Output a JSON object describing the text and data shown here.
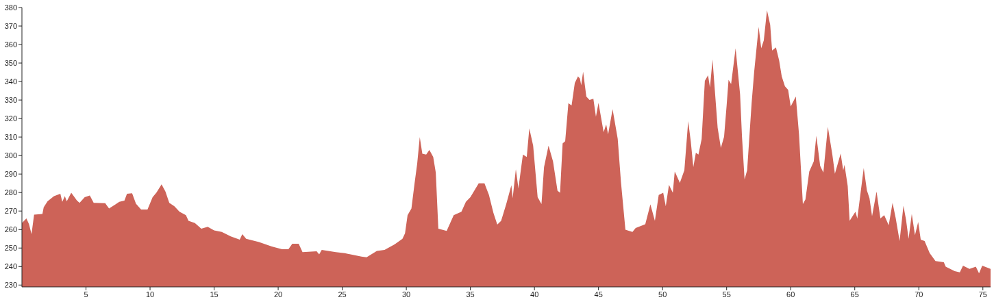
{
  "chart_data": {
    "type": "area",
    "xlim": [
      0,
      75.6
    ],
    "ylim": [
      229,
      380
    ],
    "xticks": [
      5,
      10,
      15,
      20,
      25,
      30,
      35,
      40,
      45,
      50,
      55,
      60,
      65,
      70,
      75
    ],
    "yticks": [
      230,
      240,
      250,
      260,
      270,
      280,
      290,
      300,
      310,
      320,
      330,
      340,
      350,
      360,
      370,
      380
    ],
    "grid": false,
    "series": [
      {
        "color": "#cd6358",
        "x": [
          0,
          0.35,
          0.55,
          0.75,
          0.95,
          1.6,
          1.7,
          2,
          2.5,
          3,
          3.15,
          3.35,
          3.5,
          3.85,
          4.3,
          4.5,
          4.9,
          5.3,
          5.6,
          6.5,
          6.8,
          7.3,
          7.6,
          8,
          8.2,
          8.6,
          8.9,
          9.3,
          9.8,
          10.2,
          10.5,
          10.9,
          11.2,
          11.5,
          11.9,
          12.3,
          12.8,
          13,
          13.5,
          14,
          14.5,
          15,
          15.6,
          16.3,
          17,
          17.2,
          17.5,
          18.5,
          19.5,
          20.3,
          20.8,
          21.1,
          21.6,
          21.9,
          23,
          23.2,
          23.4,
          24.5,
          25.2,
          26.5,
          26.9,
          27.7,
          28.3,
          29.1,
          29.7,
          29.9,
          30.1,
          30.4,
          30.65,
          30.85,
          31.05,
          31.25,
          31.55,
          31.8,
          32.1,
          32.3,
          32.5,
          33.15,
          33.7,
          34.3,
          34.65,
          35,
          35.65,
          36.1,
          36.45,
          36.8,
          37.1,
          37.4,
          37.8,
          38.2,
          38.3,
          38.55,
          38.75,
          39.1,
          39.4,
          39.6,
          39.9,
          40.25,
          40.55,
          40.75,
          41.1,
          41.45,
          41.8,
          42,
          42.2,
          42.4,
          42.65,
          42.9,
          43.15,
          43.4,
          43.55,
          43.65,
          43.8,
          44.05,
          44.3,
          44.6,
          44.8,
          45,
          45.4,
          45.6,
          45.75,
          46.1,
          46.5,
          46.75,
          47.1,
          47.65,
          47.9,
          48.65,
          49.05,
          49.4,
          49.7,
          50.05,
          50.25,
          50.5,
          50.8,
          50.95,
          51.35,
          51.7,
          52,
          52.2,
          52.4,
          52.6,
          52.8,
          53.05,
          53.3,
          53.55,
          53.7,
          53.9,
          54.3,
          54.55,
          54.8,
          55,
          55.15,
          55.35,
          55.7,
          56.05,
          56.2,
          56.4,
          56.6,
          56.95,
          57.15,
          57.5,
          57.7,
          57.9,
          58.15,
          58.4,
          58.55,
          58.85,
          59.1,
          59.3,
          59.55,
          59.8,
          60,
          60.4,
          60.65,
          60.95,
          61.15,
          61.45,
          61.8,
          62,
          62.3,
          62.55,
          62.9,
          63.25,
          63.45,
          63.9,
          64.1,
          64.2,
          64.45,
          64.6,
          65.05,
          65.2,
          65.7,
          65.95,
          66.15,
          66.35,
          66.7,
          67,
          67.3,
          67.65,
          67.95,
          68.2,
          68.5,
          68.8,
          69,
          69.2,
          69.45,
          69.7,
          69.95,
          70.15,
          70.45,
          70.85,
          71.3,
          71.95,
          72.1,
          72.8,
          73.2,
          73.45,
          73.95,
          74.45,
          74.7,
          74.95,
          75.6
        ],
        "values": [
          263.5,
          266,
          263,
          257.5,
          268,
          268.4,
          272,
          275.3,
          278,
          279.3,
          275,
          278,
          275.3,
          279.9,
          275.6,
          274.4,
          277.5,
          278.4,
          274.4,
          274.2,
          271.4,
          273.6,
          275,
          275.6,
          279.3,
          279.6,
          274,
          270.8,
          270.8,
          277.5,
          280,
          284.4,
          280.5,
          274.4,
          272.6,
          269.6,
          267.8,
          264.7,
          263.5,
          260.5,
          261.5,
          259.5,
          258.7,
          256.3,
          254.5,
          257.5,
          255,
          253.2,
          250.8,
          249.4,
          249.4,
          252.3,
          252.3,
          247.8,
          248.2,
          246.6,
          249,
          247.8,
          247.2,
          245.4,
          245,
          248.4,
          249,
          252,
          255,
          258,
          267.8,
          271.4,
          285.3,
          295.6,
          310,
          301,
          300.5,
          303,
          299.2,
          290.8,
          260.5,
          259.3,
          267.8,
          269.6,
          275,
          277.5,
          285,
          285,
          278.7,
          269,
          262.7,
          264.7,
          273.8,
          284,
          276.9,
          292.6,
          282.3,
          300.5,
          299.2,
          314.7,
          305.3,
          277.5,
          273.8,
          293.8,
          305.3,
          296.8,
          281,
          279.9,
          306.5,
          307.7,
          328.3,
          327.1,
          339.2,
          342.8,
          341.6,
          338,
          345.3,
          331.9,
          330,
          330.7,
          321,
          328.5,
          312.6,
          316.8,
          311.4,
          325,
          309,
          285.9,
          259.9,
          258.7,
          260.8,
          262.9,
          273.6,
          264.7,
          278.7,
          279.9,
          272.6,
          284.1,
          279.9,
          291.4,
          285.3,
          292,
          318.6,
          307.7,
          293.8,
          301.5,
          300.5,
          308.9,
          340.4,
          343.4,
          336.8,
          351.9,
          315,
          304.1,
          310.1,
          327.1,
          341,
          338.6,
          358,
          333.1,
          310.1,
          287.1,
          292,
          328.3,
          345.3,
          369.5,
          358,
          362.2,
          378.5,
          370.7,
          356.8,
          358.4,
          351.3,
          342.8,
          337.4,
          335.5,
          326.5,
          331.9,
          311.4,
          273.8,
          276.3,
          291.4,
          296.8,
          310.7,
          294.4,
          290.8,
          315.5,
          300.5,
          290.2,
          301.1,
          292,
          295,
          283.5,
          264.7,
          269.6,
          266,
          293.2,
          281.1,
          276.9,
          267.2,
          280.5,
          266,
          267.8,
          262.3,
          274.4,
          266,
          253.8,
          272.9,
          265.4,
          255,
          268.4,
          256.9,
          264.1,
          254.5,
          253.8,
          247.2,
          243,
          242.3,
          239.9,
          237.5,
          236.9,
          240.5,
          238.7,
          239.9,
          236.3,
          240.5,
          238.7
        ]
      }
    ]
  }
}
